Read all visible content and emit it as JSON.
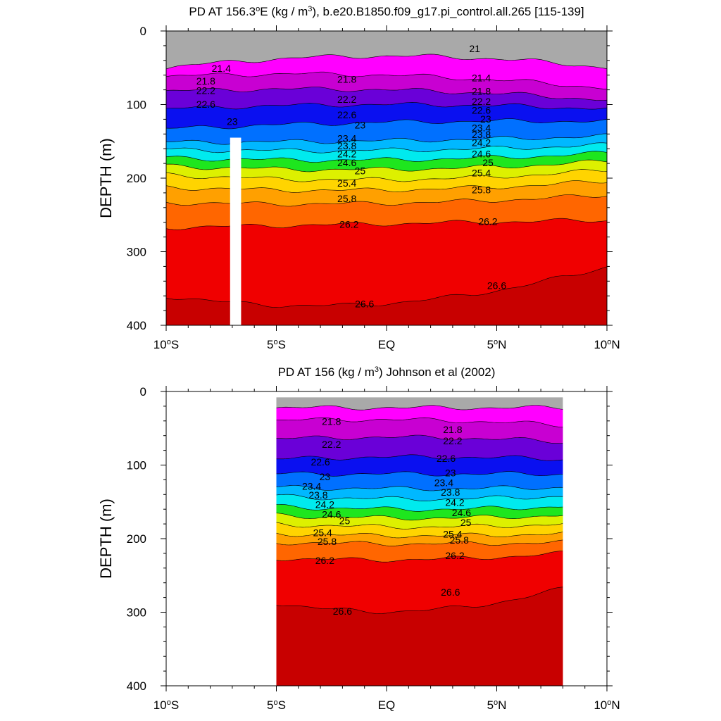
{
  "chart_data": [
    {
      "type": "heatmap",
      "title": "PD AT 156.3°E (kg / m³), b.e20.B1850.f09_g17.pi_control.all.265 [115-139]",
      "title_parts": {
        "pre": "PD AT 156.3",
        "sup1": "o",
        "mid": "E (kg / m",
        "sup2": "3",
        "post": "), b.e20.B1850.f09_g17.pi_control.all.265 [115-139]"
      },
      "xlabel": "",
      "ylabel": "DEPTH (m)",
      "xlim": [
        -10,
        10
      ],
      "ylim": [
        400,
        0
      ],
      "data_xrange": [
        -10,
        10
      ],
      "yticks": [
        0,
        100,
        200,
        300,
        400
      ],
      "xticks": [
        {
          "value": -10,
          "num": "10",
          "deg": "o",
          "hem": "S"
        },
        {
          "value": -5,
          "num": "5",
          "deg": "o",
          "hem": "S"
        },
        {
          "value": 0,
          "num": "EQ",
          "deg": "",
          "hem": ""
        },
        {
          "value": 5,
          "num": "5",
          "deg": "o",
          "hem": "N"
        },
        {
          "value": 10,
          "num": "10",
          "deg": "o",
          "hem": "N"
        }
      ],
      "missing_columns": [
        {
          "x0": -7.1,
          "x1": -6.6,
          "ytop": 145,
          "ybottom": 400
        }
      ],
      "isopycnals": [
        {
          "level": 21.4,
          "depth": 50,
          "slope": 0.0,
          "bow": -16
        },
        {
          "level": 21.8,
          "depth": 70,
          "slope": 0.8,
          "bow": -10
        },
        {
          "level": 22.2,
          "depth": 88,
          "slope": 0.6,
          "bow": -8
        },
        {
          "level": 22.6,
          "depth": 106,
          "slope": 0.0,
          "bow": -6
        },
        {
          "level": 23.0,
          "depth": 128,
          "slope": -0.5,
          "bow": -4
        },
        {
          "level": 23.4,
          "depth": 147,
          "slope": -0.4,
          "bow": 2
        },
        {
          "level": 23.8,
          "depth": 158,
          "slope": -0.3,
          "bow": 4
        },
        {
          "level": 24.2,
          "depth": 169,
          "slope": -0.3,
          "bow": 6
        },
        {
          "level": 24.6,
          "depth": 180,
          "slope": -0.3,
          "bow": 8
        },
        {
          "level": 25.0,
          "depth": 192,
          "slope": -0.3,
          "bow": 10
        },
        {
          "level": 25.4,
          "depth": 208,
          "slope": -0.4,
          "bow": 8
        },
        {
          "level": 25.8,
          "depth": 228,
          "slope": -0.5,
          "bow": 6
        },
        {
          "level": 26.2,
          "depth": 262,
          "slope": -0.5,
          "bow": 0
        },
        {
          "level": 26.6,
          "depth": 340,
          "slope": -2.0,
          "bow": 30
        }
      ],
      "contour_labels": [
        {
          "text": "21.4",
          "x": -7.5,
          "y": 52
        },
        {
          "text": "21.8",
          "x": -8.2,
          "y": 69
        },
        {
          "text": "22.2",
          "x": -8.2,
          "y": 82
        },
        {
          "text": "22.6",
          "x": -8.2,
          "y": 101
        },
        {
          "text": "23",
          "x": -7.0,
          "y": 124
        },
        {
          "text": "21.8",
          "x": -1.8,
          "y": 67
        },
        {
          "text": "22.2",
          "x": -1.8,
          "y": 94
        },
        {
          "text": "22.6",
          "x": -1.8,
          "y": 115
        },
        {
          "text": "23",
          "x": -1.2,
          "y": 129
        },
        {
          "text": "23.4",
          "x": -1.8,
          "y": 147
        },
        {
          "text": "23.8",
          "x": -1.8,
          "y": 157
        },
        {
          "text": "24.2",
          "x": -1.8,
          "y": 168
        },
        {
          "text": "24.6",
          "x": -1.8,
          "y": 180
        },
        {
          "text": "25",
          "x": -1.2,
          "y": 191
        },
        {
          "text": "25.4",
          "x": -1.8,
          "y": 208
        },
        {
          "text": "25.8",
          "x": -1.8,
          "y": 229
        },
        {
          "text": "26.2",
          "x": -1.7,
          "y": 264
        },
        {
          "text": "26.6",
          "x": -1.0,
          "y": 372
        },
        {
          "text": "21",
          "x": 4.0,
          "y": 25
        },
        {
          "text": "21.4",
          "x": 4.3,
          "y": 65
        },
        {
          "text": "21.8",
          "x": 4.3,
          "y": 83
        },
        {
          "text": "22.2",
          "x": 4.3,
          "y": 97
        },
        {
          "text": "22.6",
          "x": 4.3,
          "y": 109
        },
        {
          "text": "23",
          "x": 4.5,
          "y": 121
        },
        {
          "text": "23.4",
          "x": 4.3,
          "y": 133
        },
        {
          "text": "23.8",
          "x": 4.3,
          "y": 142
        },
        {
          "text": "24.2",
          "x": 4.3,
          "y": 153
        },
        {
          "text": "24.6",
          "x": 4.3,
          "y": 168
        },
        {
          "text": "25",
          "x": 4.6,
          "y": 180
        },
        {
          "text": "25.4",
          "x": 4.3,
          "y": 194
        },
        {
          "text": "25.8",
          "x": 4.3,
          "y": 217
        },
        {
          "text": "26.2",
          "x": 4.6,
          "y": 260
        },
        {
          "text": "26.6",
          "x": 5.0,
          "y": 347
        }
      ]
    },
    {
      "type": "heatmap",
      "title": "PD AT 156 (kg / m³) Johnson et al (2002)",
      "title_parts": {
        "pre": "PD AT 156 (kg / m",
        "sup1": "3",
        "mid": ") Johnson et al (2002)",
        "sup2": "",
        "post": ""
      },
      "xlabel": "",
      "ylabel": "DEPTH (m)",
      "xlim": [
        -10,
        10
      ],
      "ylim": [
        400,
        0
      ],
      "data_xrange": [
        -5,
        8
      ],
      "yticks": [
        0,
        100,
        200,
        300,
        400
      ],
      "xticks": [
        {
          "value": -10,
          "num": "10",
          "deg": "o",
          "hem": "S"
        },
        {
          "value": -5,
          "num": "5",
          "deg": "o",
          "hem": "S"
        },
        {
          "value": 0,
          "num": "EQ",
          "deg": "",
          "hem": ""
        },
        {
          "value": 5,
          "num": "5",
          "deg": "o",
          "hem": "N"
        },
        {
          "value": 10,
          "num": "10",
          "deg": "o",
          "hem": "N"
        }
      ],
      "missing_columns": [],
      "isopycnals": [
        {
          "level": 21.4,
          "depth": 22,
          "slope": 0.0,
          "bow": 0
        },
        {
          "level": 21.8,
          "depth": 42,
          "slope": 0.5,
          "bow": -4
        },
        {
          "level": 22.2,
          "depth": 66,
          "slope": 0.3,
          "bow": -4
        },
        {
          "level": 22.6,
          "depth": 92,
          "slope": 0.0,
          "bow": -3
        },
        {
          "level": 23.0,
          "depth": 112,
          "slope": 0.0,
          "bow": 0
        },
        {
          "level": 23.4,
          "depth": 130,
          "slope": 0.0,
          "bow": 2
        },
        {
          "level": 23.8,
          "depth": 142,
          "slope": 0.0,
          "bow": 4
        },
        {
          "level": 24.2,
          "depth": 156,
          "slope": 0.0,
          "bow": 4
        },
        {
          "level": 24.6,
          "depth": 168,
          "slope": 0.0,
          "bow": 4
        },
        {
          "level": 25.0,
          "depth": 180,
          "slope": 0.0,
          "bow": 4
        },
        {
          "level": 25.4,
          "depth": 193,
          "slope": 0.0,
          "bow": 3
        },
        {
          "level": 25.8,
          "depth": 205,
          "slope": 0.0,
          "bow": 2
        },
        {
          "level": 26.2,
          "depth": 224,
          "slope": -0.5,
          "bow": 5
        },
        {
          "level": 26.6,
          "depth": 280,
          "slope": -1.5,
          "bow": 20
        }
      ],
      "contour_labels": [
        {
          "text": "21.8",
          "x": -2.5,
          "y": 42
        },
        {
          "text": "22.2",
          "x": -2.5,
          "y": 73
        },
        {
          "text": "22.6",
          "x": -3.0,
          "y": 97
        },
        {
          "text": "23",
          "x": -2.8,
          "y": 117
        },
        {
          "text": "23.4",
          "x": -3.4,
          "y": 130
        },
        {
          "text": "23.8",
          "x": -3.1,
          "y": 142
        },
        {
          "text": "24.2",
          "x": -2.8,
          "y": 155
        },
        {
          "text": "24.6",
          "x": -2.5,
          "y": 168
        },
        {
          "text": "25",
          "x": -1.9,
          "y": 177
        },
        {
          "text": "25.4",
          "x": -2.9,
          "y": 193
        },
        {
          "text": "25.8",
          "x": -2.7,
          "y": 205
        },
        {
          "text": "26.2",
          "x": -2.8,
          "y": 231
        },
        {
          "text": "26.6",
          "x": -2.0,
          "y": 300
        },
        {
          "text": "21.8",
          "x": 3.0,
          "y": 53
        },
        {
          "text": "22.2",
          "x": 3.0,
          "y": 68
        },
        {
          "text": "22.6",
          "x": 2.7,
          "y": 92
        },
        {
          "text": "23",
          "x": 2.9,
          "y": 112
        },
        {
          "text": "23.4",
          "x": 2.6,
          "y": 125
        },
        {
          "text": "23.8",
          "x": 2.9,
          "y": 138
        },
        {
          "text": "24.2",
          "x": 3.1,
          "y": 152
        },
        {
          "text": "24.6",
          "x": 3.4,
          "y": 166
        },
        {
          "text": "25",
          "x": 3.6,
          "y": 179
        },
        {
          "text": "25.4",
          "x": 3.0,
          "y": 195
        },
        {
          "text": "25.8",
          "x": 3.3,
          "y": 203
        },
        {
          "text": "26.2",
          "x": 3.1,
          "y": 224
        },
        {
          "text": "26.6",
          "x": 2.9,
          "y": 274
        }
      ]
    }
  ],
  "colormap": {
    "levels": [
      21.4,
      21.8,
      22.2,
      22.6,
      23.0,
      23.4,
      23.8,
      24.2,
      24.6,
      25.0,
      25.4,
      25.8,
      26.2,
      26.6
    ],
    "colors": [
      "#a9a9a9",
      "#ff00ff",
      "#c800d2",
      "#6a00d8",
      "#0a10f0",
      "#0070ff",
      "#00b8ff",
      "#00eaee",
      "#1ee61e",
      "#ddf000",
      "#ffd400",
      "#ffa000",
      "#ff6600",
      "#f00000",
      "#c80000"
    ],
    "contour_color": "#000000"
  }
}
